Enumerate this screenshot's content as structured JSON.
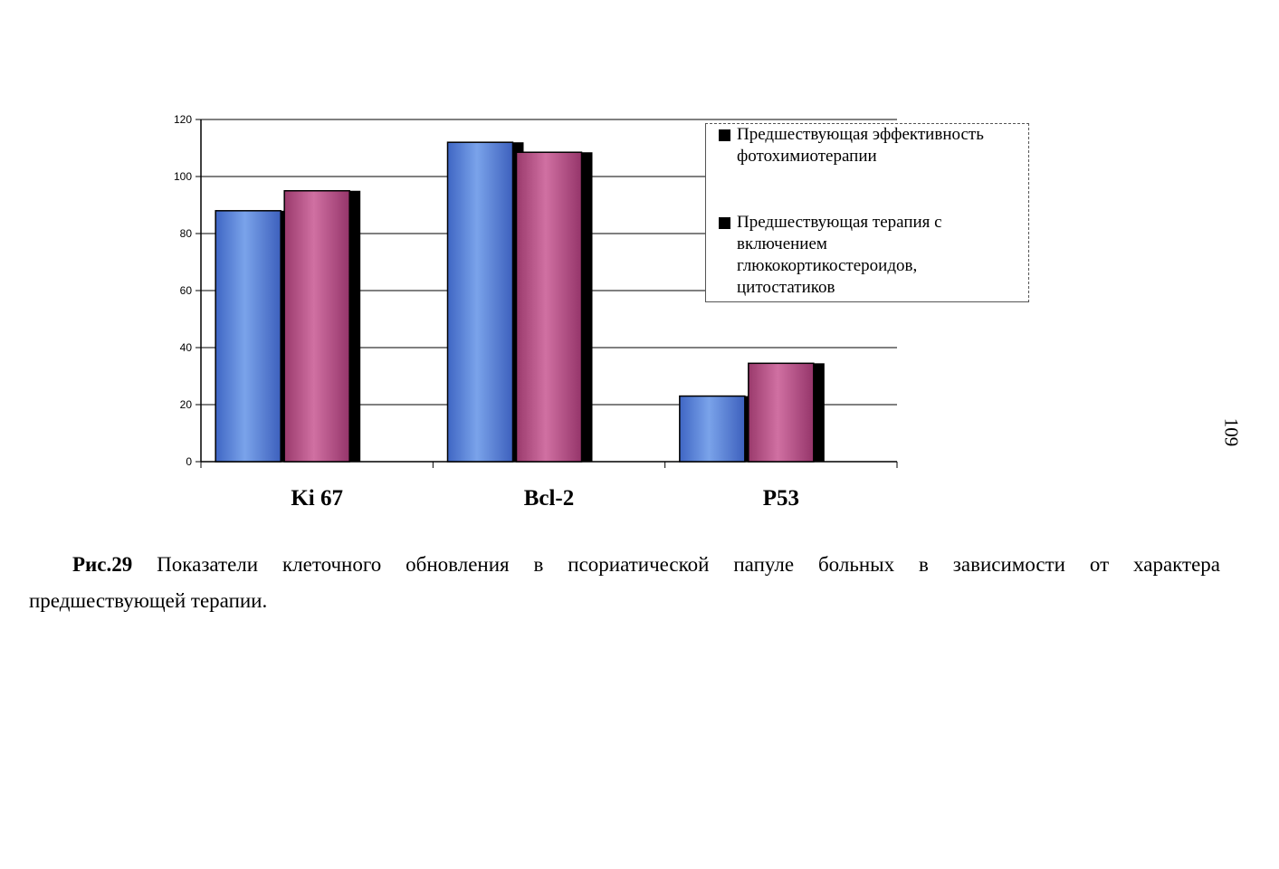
{
  "chart_data": {
    "type": "bar",
    "categories": [
      "Ki 67",
      "Bcl-2",
      "P53"
    ],
    "series": [
      {
        "name": "Предшествующая эффективность фотохимиотерапии",
        "values": [
          88,
          112,
          23
        ],
        "color": "#5b86d8"
      },
      {
        "name": "Предшествующая терапия с включением глюкокортикостероидов, цитостатиков",
        "values": [
          95,
          108.5,
          34.5
        ],
        "color": "#b84f86"
      }
    ],
    "ylim": [
      0,
      120
    ],
    "yticks": [
      "0",
      "20",
      "40",
      "60",
      "80",
      "100",
      "120"
    ],
    "grid": true,
    "legend": "top-right",
    "title": "",
    "xlabel": "",
    "ylabel": ""
  },
  "legend": {
    "items": [
      {
        "lines": [
          "Предшествующая эффективность",
          "фотохимиотерапии"
        ]
      },
      {
        "lines": [
          "Предшествующая терапия с",
          "включением",
          "глюкокортикостероидов,",
          "цитостатиков"
        ]
      }
    ]
  },
  "page_number": "109",
  "caption": {
    "label": "Рис.29",
    "line1_text": " Показатели клеточного обновления в псориатической папуле больных в зависимости от характера",
    "line2_text": "предшествующей терапии."
  }
}
